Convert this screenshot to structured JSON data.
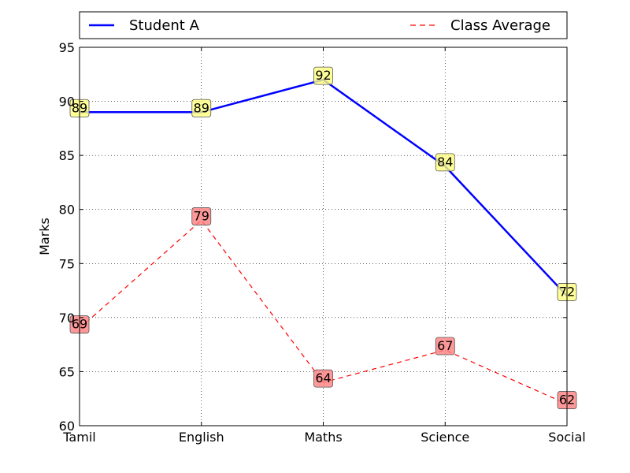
{
  "chart_data": {
    "type": "line",
    "title": "",
    "xlabel": "",
    "ylabel": "Marks",
    "categories": [
      "Tamil",
      "English",
      "Maths",
      "Science",
      "Social"
    ],
    "ylim": [
      60,
      95
    ],
    "yticks": [
      60,
      65,
      70,
      75,
      80,
      85,
      90,
      95
    ],
    "grid": true,
    "legend_position": "top",
    "series": [
      {
        "name": "Student A",
        "values": [
          89,
          89,
          92,
          84,
          72
        ],
        "color": "#0000ff",
        "style": "solid",
        "label_bg": "#ffff80"
      },
      {
        "name": "Class Average",
        "values": [
          69,
          79,
          64,
          67,
          62
        ],
        "color": "#ff0000",
        "style": "dashed",
        "label_bg": "#ff8080"
      }
    ]
  }
}
